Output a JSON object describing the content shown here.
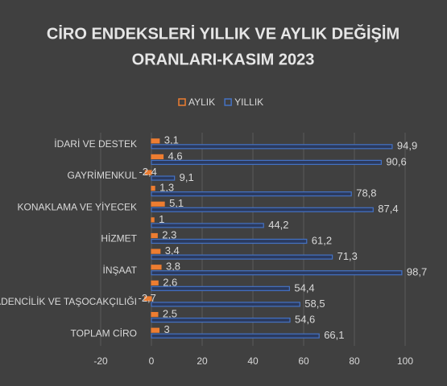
{
  "chart_data": {
    "type": "hbar",
    "title": "CİRO ENDEKSLERİ YILLIK VE AYLIK DEĞİŞİM",
    "subtitle": "ORANLARI-KASIM 2023",
    "categories": [
      "İDARİ VE DESTEK",
      null,
      "GAYRİMENKUL",
      null,
      "KONAKLAMA VE YİYECEK",
      null,
      "HİZMET",
      null,
      "İNŞAAT",
      null,
      "MADENCİLİK VE TAŞOCAKÇILIĞI",
      null,
      "TOPLAM CİRO"
    ],
    "series": [
      {
        "name": "AYLIK",
        "color": "#ed7d31",
        "values": [
          3.1,
          4.6,
          -2.4,
          1.3,
          5.1,
          1,
          2.3,
          3.4,
          3.8,
          2.6,
          -2.7,
          2.5,
          3
        ],
        "value_labels": [
          "3,1",
          "4,6",
          "-2,4",
          "1,3",
          "5,1",
          "1",
          "2,3",
          "3,4",
          "3,8",
          "2,6",
          "-2,7",
          "2,5",
          "3"
        ]
      },
      {
        "name": "YILLIK",
        "color": "#4472c4",
        "values": [
          94.9,
          90.6,
          9.1,
          78.8,
          87.4,
          44.2,
          61.2,
          71.3,
          98.7,
          54.4,
          58.5,
          54.6,
          66.1
        ],
        "value_labels": [
          "94,9",
          "90,6",
          "9,1",
          "78,8",
          "87,4",
          "44,2",
          "61,2",
          "71,3",
          "98,7",
          "54,4",
          "58,5",
          "54,6",
          "66,1"
        ]
      }
    ],
    "xlim": [
      -20,
      100
    ],
    "xticks": [
      -20,
      0,
      20,
      40,
      60,
      80,
      100
    ],
    "grid": true,
    "legend": "top"
  }
}
